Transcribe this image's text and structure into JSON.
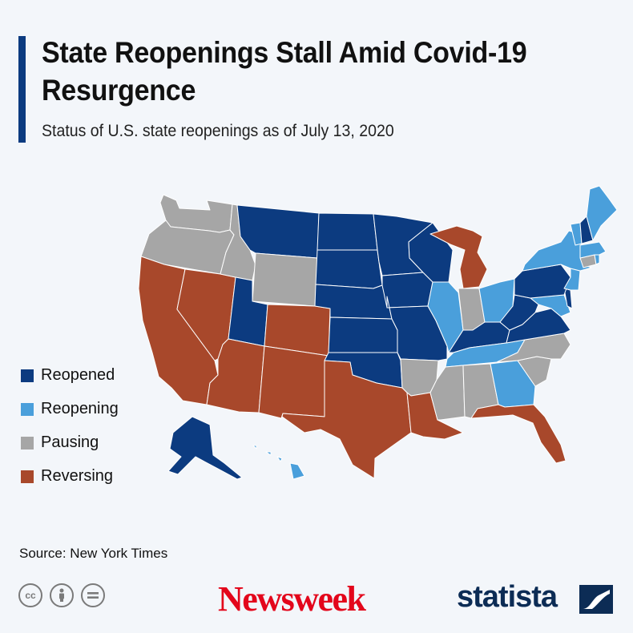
{
  "header": {
    "title": "State Reopenings Stall Amid Covid-19 Resurgence",
    "subtitle": "Status of U.S. state reopenings as of July 13, 2020"
  },
  "colors": {
    "reopened": "#0c3b80",
    "reopening": "#4a9fdb",
    "pausing": "#a6a6a6",
    "reversing": "#a8482b",
    "accent": "#0c3b80"
  },
  "legend": [
    {
      "label": "Reopened",
      "status": "reopened"
    },
    {
      "label": "Reopening",
      "status": "reopening"
    },
    {
      "label": "Pausing",
      "status": "pausing"
    },
    {
      "label": "Reversing",
      "status": "reversing"
    }
  ],
  "map_data": {
    "states": [
      {
        "state": "Washington",
        "status": "pausing"
      },
      {
        "state": "Oregon",
        "status": "pausing"
      },
      {
        "state": "California",
        "status": "reversing"
      },
      {
        "state": "Nevada",
        "status": "reversing"
      },
      {
        "state": "Idaho",
        "status": "pausing"
      },
      {
        "state": "Montana",
        "status": "reopened"
      },
      {
        "state": "Wyoming",
        "status": "pausing"
      },
      {
        "state": "Utah",
        "status": "reopened"
      },
      {
        "state": "Arizona",
        "status": "reversing"
      },
      {
        "state": "Colorado",
        "status": "reversing"
      },
      {
        "state": "New Mexico",
        "status": "reversing"
      },
      {
        "state": "North Dakota",
        "status": "reopened"
      },
      {
        "state": "South Dakota",
        "status": "reopened"
      },
      {
        "state": "Nebraska",
        "status": "reopened"
      },
      {
        "state": "Kansas",
        "status": "reopened"
      },
      {
        "state": "Oklahoma",
        "status": "reopened"
      },
      {
        "state": "Texas",
        "status": "reversing"
      },
      {
        "state": "Minnesota",
        "status": "reopened"
      },
      {
        "state": "Iowa",
        "status": "reopened"
      },
      {
        "state": "Missouri",
        "status": "reopened"
      },
      {
        "state": "Arkansas",
        "status": "pausing"
      },
      {
        "state": "Louisiana",
        "status": "reversing"
      },
      {
        "state": "Wisconsin",
        "status": "reopened"
      },
      {
        "state": "Illinois",
        "status": "reopening"
      },
      {
        "state": "Michigan",
        "status": "reversing"
      },
      {
        "state": "Indiana",
        "status": "pausing"
      },
      {
        "state": "Ohio",
        "status": "reopening"
      },
      {
        "state": "Kentucky",
        "status": "reopened"
      },
      {
        "state": "Tennessee",
        "status": "reopening"
      },
      {
        "state": "Mississippi",
        "status": "pausing"
      },
      {
        "state": "Alabama",
        "status": "pausing"
      },
      {
        "state": "Georgia",
        "status": "reopening"
      },
      {
        "state": "Florida",
        "status": "reversing"
      },
      {
        "state": "South Carolina",
        "status": "pausing"
      },
      {
        "state": "North Carolina",
        "status": "pausing"
      },
      {
        "state": "Virginia",
        "status": "reopened"
      },
      {
        "state": "West Virginia",
        "status": "reopened"
      },
      {
        "state": "Maryland",
        "status": "reopening"
      },
      {
        "state": "Delaware",
        "status": "reopened"
      },
      {
        "state": "Pennsylvania",
        "status": "reopened"
      },
      {
        "state": "New Jersey",
        "status": "reopening"
      },
      {
        "state": "New York",
        "status": "reopening"
      },
      {
        "state": "Connecticut",
        "status": "pausing"
      },
      {
        "state": "Rhode Island",
        "status": "reopening"
      },
      {
        "state": "Massachusetts",
        "status": "reopening"
      },
      {
        "state": "Vermont",
        "status": "reopening"
      },
      {
        "state": "New Hampshire",
        "status": "reopened"
      },
      {
        "state": "Maine",
        "status": "reopening"
      },
      {
        "state": "Alaska",
        "status": "reopened"
      },
      {
        "state": "Hawaii",
        "status": "reopening"
      }
    ]
  },
  "footer": {
    "source": "Source: New York Times",
    "license_icons": [
      "creative-commons-icon",
      "attribution-icon",
      "no-derivatives-icon"
    ],
    "newsweek_logo": "Newsweek",
    "statista_logo": "statista"
  }
}
